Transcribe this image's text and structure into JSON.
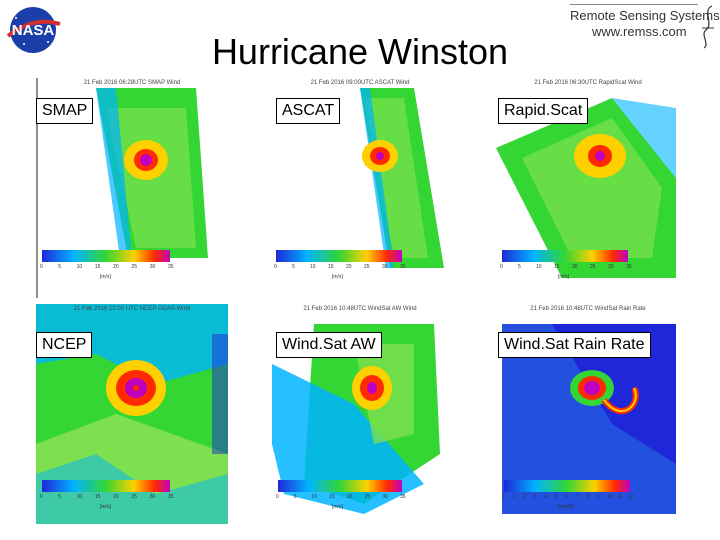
{
  "slide": {
    "title": "Hurricane Winston",
    "logos": {
      "nasa": "NASA",
      "rss_name": "Remote Sensing Systems",
      "rss_url": "www.remss.com"
    }
  },
  "panels": [
    {
      "label": "SMAP",
      "title": "21 Feb 2016 06:28UTC SMAP Wind",
      "unit": "[m/s]",
      "scale": [
        "0",
        "5",
        "10",
        "15",
        "20",
        "25",
        "30",
        "35"
      ]
    },
    {
      "label": "ASCAT",
      "title": "21 Feb 2016 09:00UTC ASCAT Wind",
      "unit": "[m/s]",
      "scale": [
        "0",
        "5",
        "10",
        "15",
        "20",
        "25",
        "30",
        "35"
      ]
    },
    {
      "label": "Rapid.Scat",
      "title": "21 Feb 2016 06:30UTC RapidScat Wind",
      "unit": "[m/s]",
      "scale": [
        "0",
        "5",
        "10",
        "15",
        "20",
        "25",
        "30",
        "35"
      ]
    },
    {
      "label": "NCEP",
      "title": "21 Feb 2016 12:00 UTC NCEP GDAS Wind",
      "unit": "[m/s]",
      "scale": [
        "0",
        "5",
        "10",
        "15",
        "20",
        "25",
        "30",
        "35"
      ]
    },
    {
      "label": "Wind.Sat AW",
      "title": "21 Feb 2016 10:48UTC WindSat AW Wind",
      "unit": "[m/s]",
      "scale": [
        "0",
        "5",
        "10",
        "15",
        "20",
        "25",
        "30",
        "35"
      ]
    },
    {
      "label": "Wind.Sat  Rain Rate",
      "title": "21 Feb 2016 10:48UTC WindSat Rain Rate",
      "unit": "[mm/h]",
      "scale": [
        "0",
        "1",
        "2",
        "3",
        "4",
        "5",
        "6",
        "7",
        "8",
        "9",
        "10",
        "11",
        "12"
      ]
    }
  ],
  "colors": {
    "land": "#8e8e8e",
    "calm": "#1e28d8",
    "low": "#00b4ff",
    "mid": "#33d633",
    "high": "#ffd000",
    "strong": "#ff2a00",
    "extreme": "#c000c0"
  }
}
